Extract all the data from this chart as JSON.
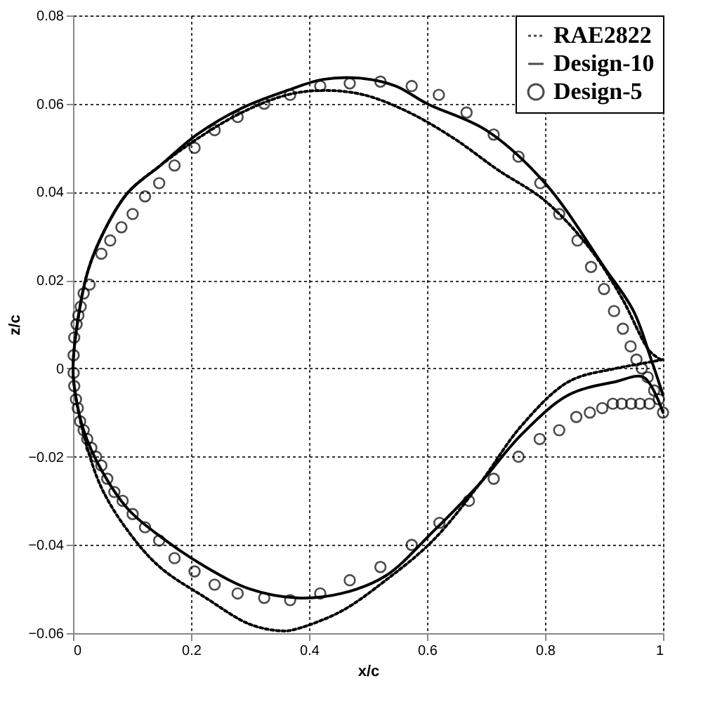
{
  "chart_data": {
    "type": "line",
    "xlabel": "x/c",
    "ylabel": "z/c",
    "xlim": [
      0,
      1
    ],
    "ylim": [
      -0.06,
      0.08
    ],
    "xticks": [
      0,
      0.2,
      0.4,
      0.6,
      0.8,
      1
    ],
    "yticks": [
      -0.06,
      -0.04,
      -0.02,
      0,
      0.02,
      0.04,
      0.06,
      0.08
    ],
    "grid": true,
    "legend": "top right",
    "series": [
      {
        "name": "RAE2822",
        "color": "#000000",
        "line_style": "dotted",
        "marker": "none",
        "x": [
          0.996,
          0.977,
          0.93,
          0.877,
          0.8,
          0.72,
          0.647,
          0.57,
          0.493,
          0.424,
          0.363,
          0.286,
          0.21,
          0.148,
          0.094,
          0.056,
          0.025,
          0.006,
          0,
          0.003,
          0.018,
          0.048,
          0.094,
          0.147,
          0.225,
          0.3,
          0.356,
          0.38,
          0.455,
          0.53,
          0.61,
          0.69,
          0.76,
          0.84,
          0.92,
          0.96,
          1
        ],
        "values": [
          0.002,
          0.004,
          0.016,
          0.027,
          0.038,
          0.045,
          0.052,
          0.058,
          0.062,
          0.063,
          0.062,
          0.058,
          0.052,
          0.046,
          0.04,
          0.032,
          0.022,
          0.009,
          0,
          -0.005,
          -0.015,
          -0.027,
          -0.037,
          -0.045,
          -0.052,
          -0.058,
          -0.0595,
          -0.059,
          -0.055,
          -0.048,
          -0.039,
          -0.026,
          -0.013,
          -0.003,
          0.0,
          0.001,
          0.002
        ]
      },
      {
        "name": "Design-10",
        "color": "#000000",
        "line_style": "solid",
        "marker": "none",
        "x": [
          1,
          0.98,
          0.95,
          0.9,
          0.8,
          0.7,
          0.6,
          0.547,
          0.493,
          0.424,
          0.363,
          0.286,
          0.21,
          0.148,
          0.094,
          0.056,
          0.025,
          0.006,
          0,
          0.003,
          0.018,
          0.048,
          0.094,
          0.147,
          0.225,
          0.3,
          0.38,
          0.455,
          0.53,
          0.61,
          0.69,
          0.76,
          0.84,
          0.92,
          0.967,
          1
        ],
        "values": [
          -0.006,
          0.002,
          0.013,
          0.023,
          0.042,
          0.054,
          0.06,
          0.064,
          0.0657,
          0.0655,
          0.063,
          0.059,
          0.053,
          0.046,
          0.04,
          0.032,
          0.022,
          0.009,
          0,
          -0.005,
          -0.014,
          -0.023,
          -0.032,
          -0.038,
          -0.045,
          -0.05,
          -0.052,
          -0.051,
          -0.047,
          -0.037,
          -0.026,
          -0.015,
          -0.006,
          -0.003,
          -0.002,
          -0.01
        ]
      },
      {
        "name": "Design-5",
        "type": "scatter",
        "color": "#000000",
        "marker": "circle",
        "x": [
          1,
          0.993,
          0.985,
          0.974,
          0.964,
          0.955,
          0.945,
          0.932,
          0.917,
          0.9,
          0.878,
          0.855,
          0.824,
          0.792,
          0.755,
          0.713,
          0.667,
          0.62,
          0.574,
          0.521,
          0.469,
          0.419,
          0.368,
          0.324,
          0.279,
          0.24,
          0.206,
          0.172,
          0.146,
          0.122,
          0.101,
          0.082,
          0.063,
          0.048,
          0.028,
          0.018,
          0.013,
          0.009,
          0.006,
          0.002,
          0.001,
          0.001,
          0.002,
          0.005,
          0.008,
          0.012,
          0.018,
          0.024,
          0.031,
          0.039,
          0.048,
          0.058,
          0.07,
          0.084,
          0.101,
          0.122,
          0.146,
          0.172,
          0.206,
          0.24,
          0.279,
          0.324,
          0.368,
          0.419,
          0.469,
          0.521,
          0.574,
          0.621,
          0.671,
          0.713,
          0.755,
          0.791,
          0.824,
          0.853,
          0.876,
          0.897,
          0.915,
          0.93,
          0.946,
          0.961,
          0.977
        ],
        "values": [
          -0.01,
          -0.007,
          -0.005,
          -0.002,
          0.0,
          0.002,
          0.005,
          0.009,
          0.013,
          0.018,
          0.023,
          0.029,
          0.035,
          0.042,
          0.048,
          0.053,
          0.058,
          0.062,
          0.064,
          0.065,
          0.0646,
          0.064,
          0.062,
          0.06,
          0.057,
          0.054,
          0.05,
          0.046,
          0.042,
          0.039,
          0.035,
          0.032,
          0.029,
          0.026,
          0.019,
          0.017,
          0.014,
          0.012,
          0.01,
          0.007,
          0.003,
          -0.001,
          -0.004,
          -0.007,
          -0.009,
          -0.012,
          -0.014,
          -0.016,
          -0.018,
          -0.02,
          -0.022,
          -0.025,
          -0.028,
          -0.03,
          -0.033,
          -0.036,
          -0.039,
          -0.043,
          -0.046,
          -0.049,
          -0.051,
          -0.052,
          -0.0525,
          -0.051,
          -0.048,
          -0.045,
          -0.04,
          -0.035,
          -0.03,
          -0.025,
          -0.02,
          -0.016,
          -0.014,
          -0.011,
          -0.01,
          -0.009,
          -0.008,
          -0.008,
          -0.008,
          -0.008,
          -0.008
        ]
      }
    ]
  }
}
